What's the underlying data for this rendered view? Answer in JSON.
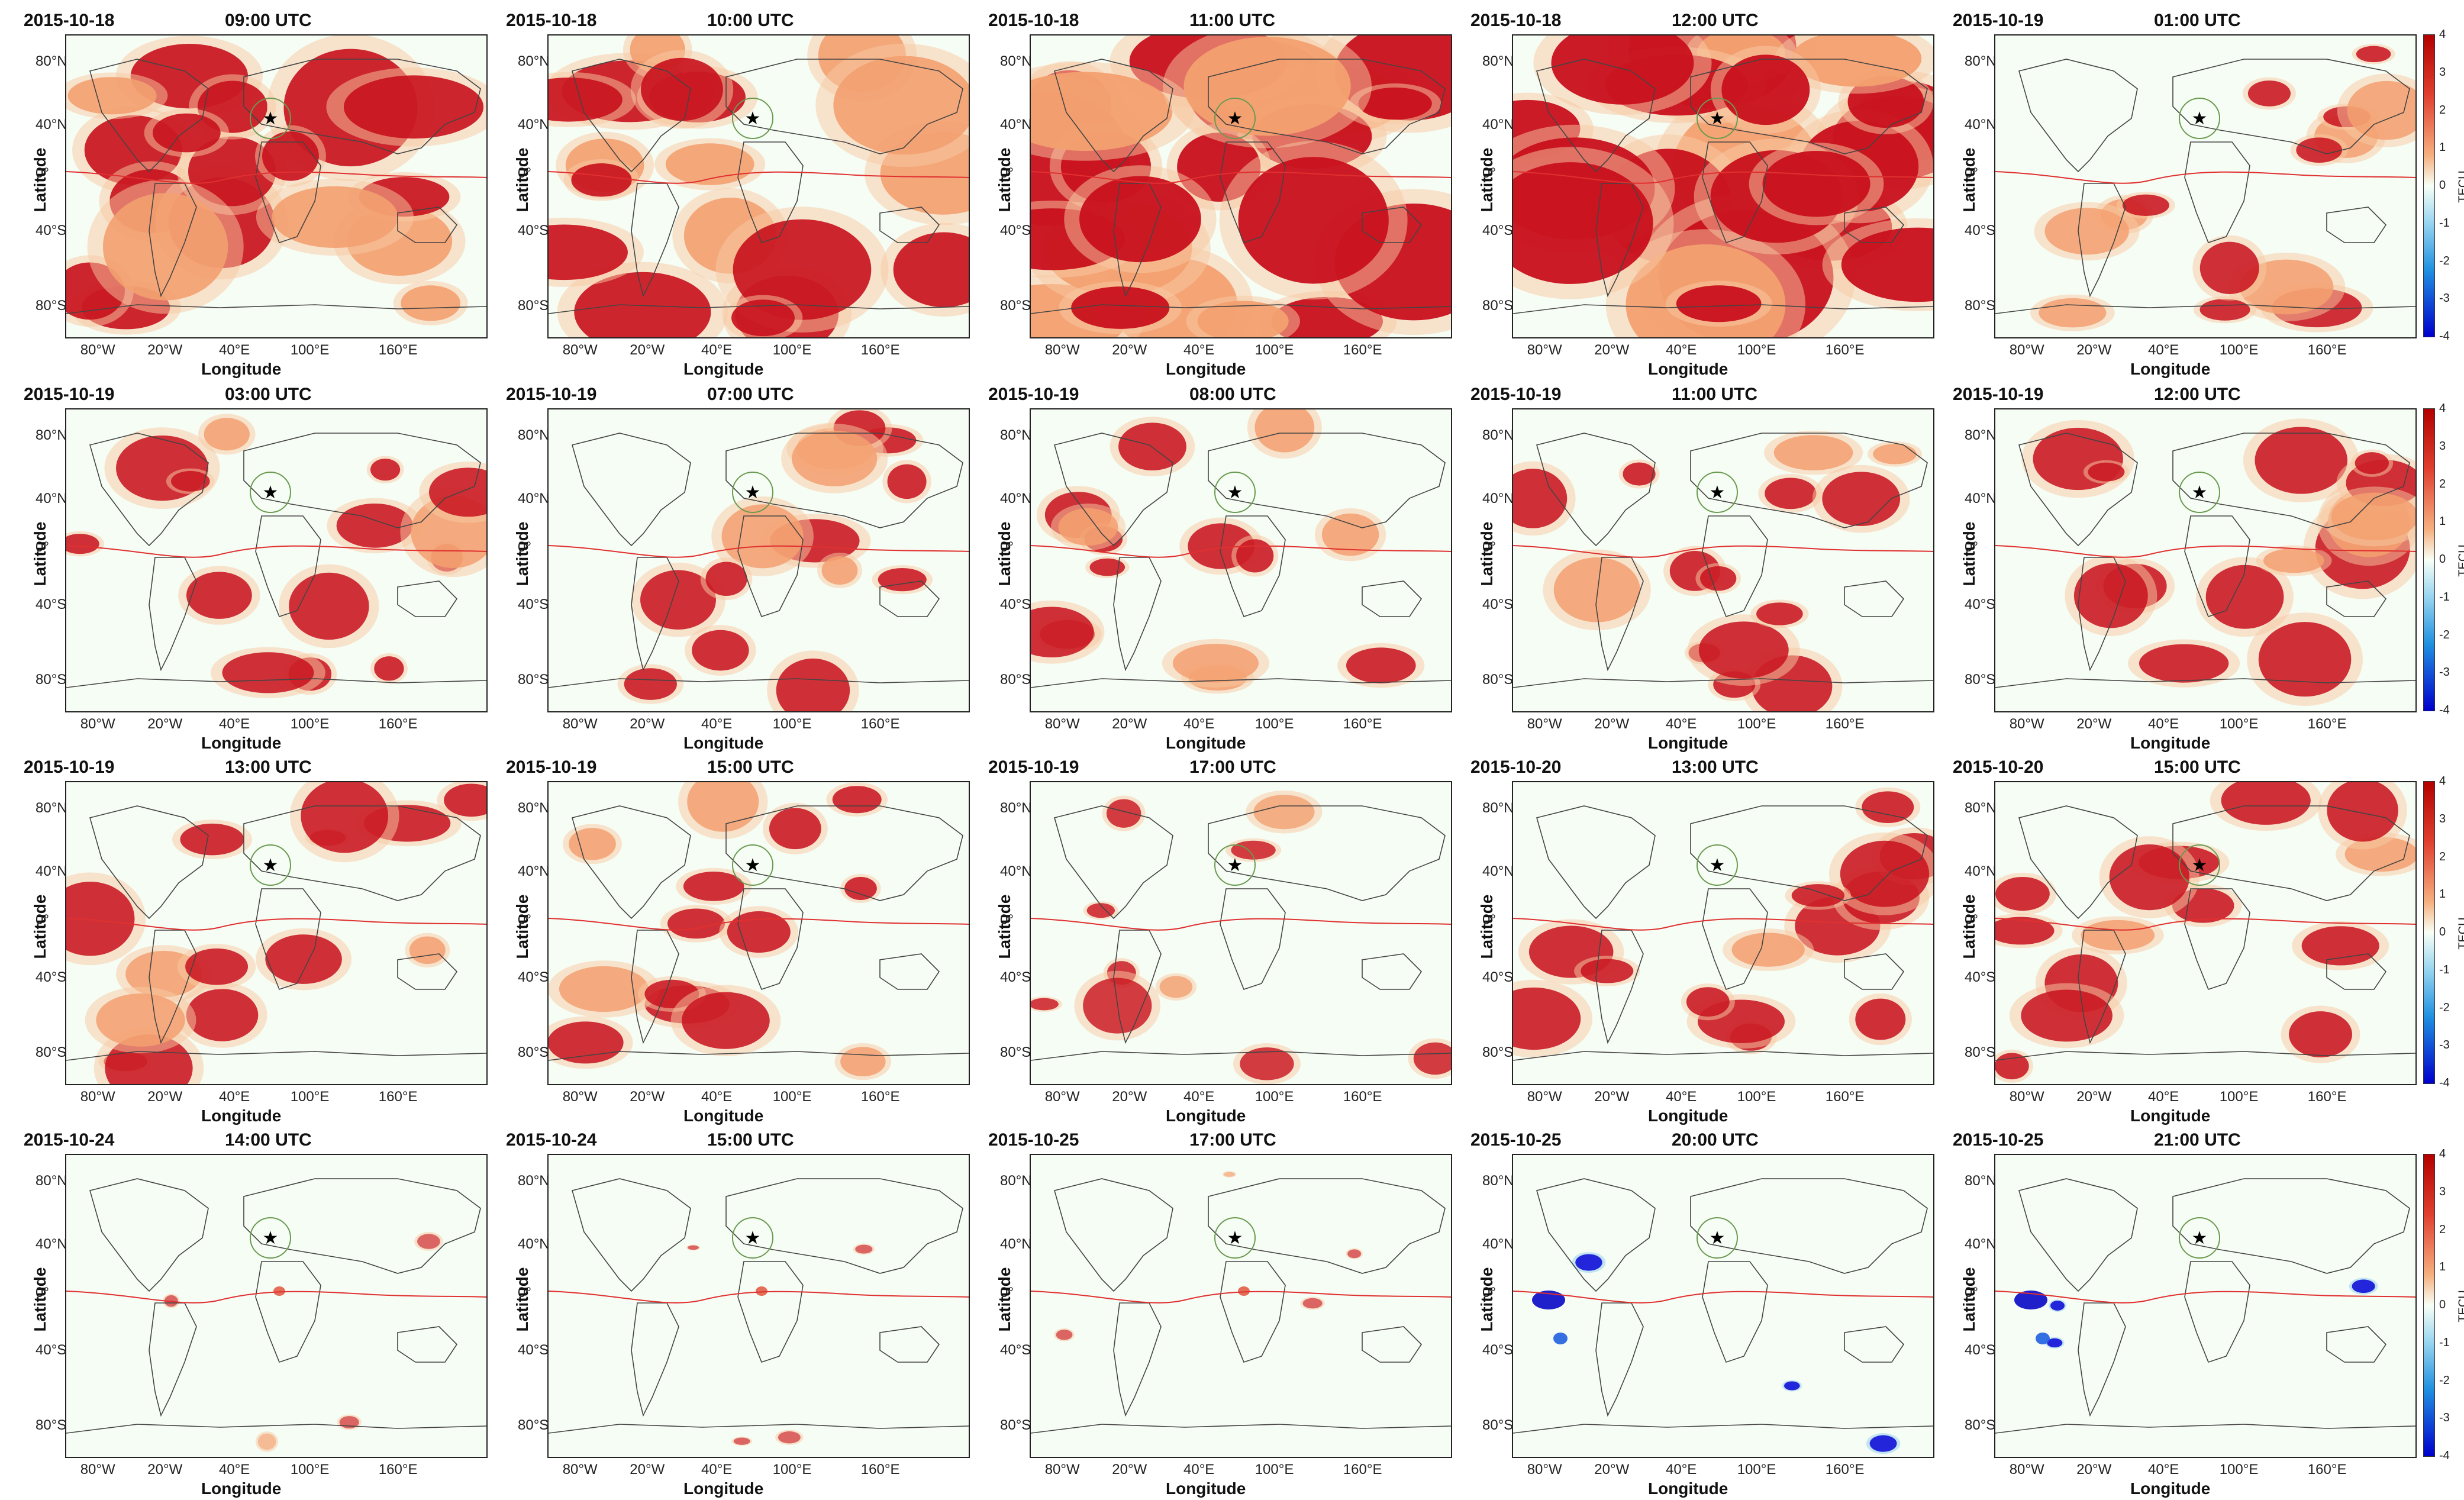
{
  "axes": {
    "ylabel": "Latitude",
    "xlabel": "Longitude",
    "lat_ticks": [
      "80°N",
      "40°N",
      "0°",
      "40°S",
      "80°S"
    ],
    "lon_ticks": [
      "80°W",
      "20°W",
      "40°E",
      "100°E",
      "160°E"
    ]
  },
  "colorbar": {
    "label": "TECU",
    "ticks": [
      "4",
      "3",
      "2",
      "1",
      "0",
      "-1",
      "-2",
      "-3",
      "-4"
    ],
    "colors": {
      "max": "#b30000",
      "zero": "#f8fff6",
      "min": "#0000cc"
    }
  },
  "panels": [
    {
      "date": "2015-10-18",
      "time": "09:00 UTC",
      "activity": "high"
    },
    {
      "date": "2015-10-18",
      "time": "10:00 UTC",
      "activity": "high"
    },
    {
      "date": "2015-10-18",
      "time": "11:00 UTC",
      "activity": "very-high"
    },
    {
      "date": "2015-10-18",
      "time": "12:00 UTC",
      "activity": "very-high"
    },
    {
      "date": "2015-10-19",
      "time": "01:00 UTC",
      "activity": "medium"
    },
    {
      "date": "2015-10-19",
      "time": "03:00 UTC",
      "activity": "medium"
    },
    {
      "date": "2015-10-19",
      "time": "07:00 UTC",
      "activity": "medium"
    },
    {
      "date": "2015-10-19",
      "time": "08:00 UTC",
      "activity": "medium"
    },
    {
      "date": "2015-10-19",
      "time": "11:00 UTC",
      "activity": "medium"
    },
    {
      "date": "2015-10-19",
      "time": "12:00 UTC",
      "activity": "medium"
    },
    {
      "date": "2015-10-19",
      "time": "13:00 UTC",
      "activity": "medium"
    },
    {
      "date": "2015-10-19",
      "time": "15:00 UTC",
      "activity": "medium"
    },
    {
      "date": "2015-10-19",
      "time": "17:00 UTC",
      "activity": "low"
    },
    {
      "date": "2015-10-20",
      "time": "13:00 UTC",
      "activity": "medium"
    },
    {
      "date": "2015-10-20",
      "time": "15:00 UTC",
      "activity": "medium"
    },
    {
      "date": "2015-10-24",
      "time": "14:00 UTC",
      "activity": "minimal"
    },
    {
      "date": "2015-10-24",
      "time": "15:00 UTC",
      "activity": "minimal"
    },
    {
      "date": "2015-10-25",
      "time": "17:00 UTC",
      "activity": "minimal"
    },
    {
      "date": "2015-10-25",
      "time": "20:00 UTC",
      "activity": "negative"
    },
    {
      "date": "2015-10-25",
      "time": "21:00 UTC",
      "activity": "negative"
    }
  ],
  "marker": "star-icon"
}
